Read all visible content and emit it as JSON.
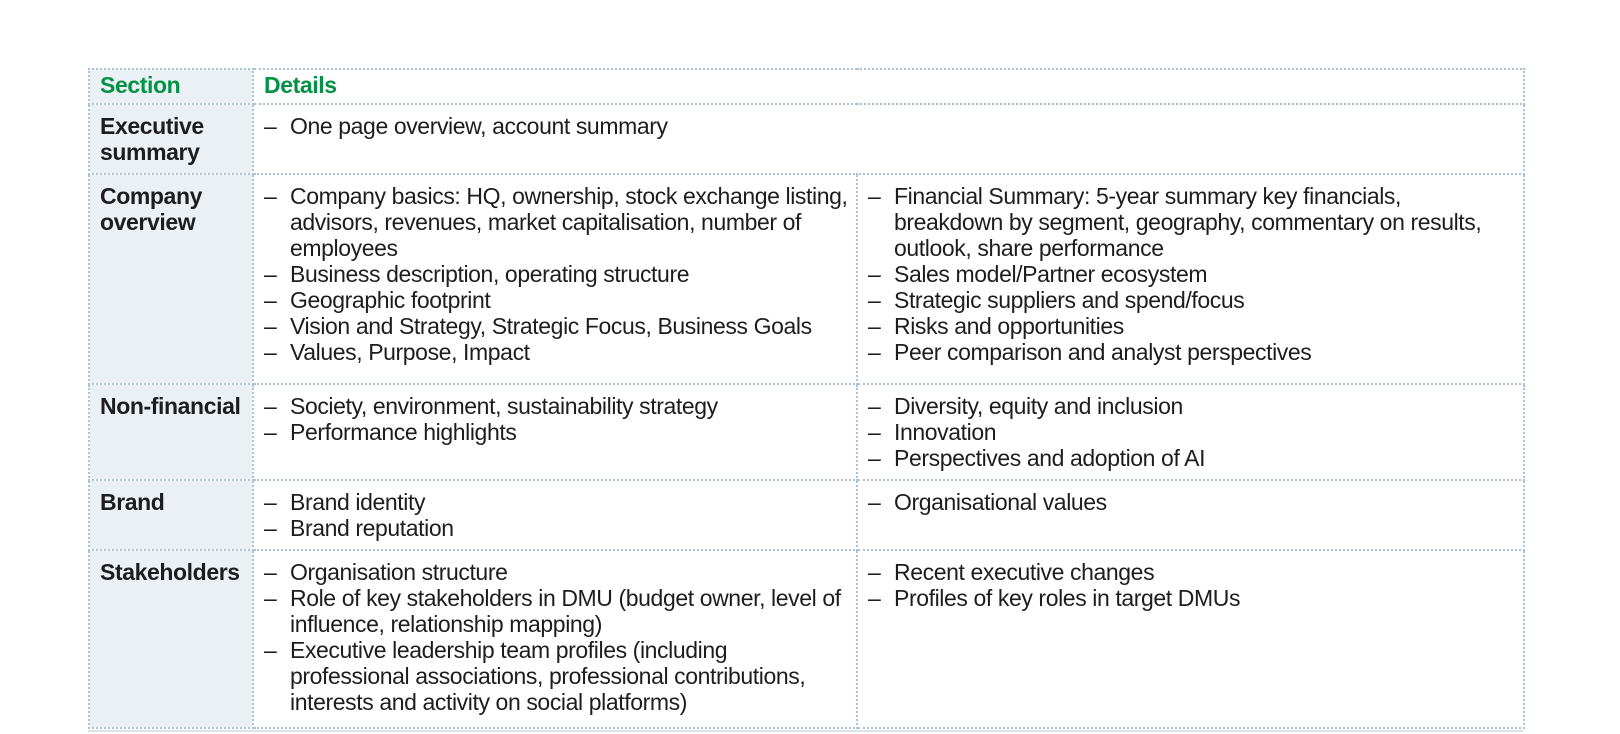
{
  "table": {
    "header": {
      "section": "Section",
      "details": "Details"
    },
    "bullet_char": "–",
    "rows": [
      {
        "section": "Executive summary",
        "left": [
          "One page overview, account summary"
        ],
        "right": null
      },
      {
        "section": "Company overview",
        "left": [
          "Company basics: HQ, ownership, stock exchange listing, advisors, revenues, market capitalisation, number of employees",
          "Business description, operating structure",
          "Geographic footprint",
          "Vision and Strategy, Strategic Focus, Business Goals",
          "Values, Purpose, Impact"
        ],
        "right": [
          "Financial Summary: 5-year summary key financials, breakdown by segment, geography, commentary on results, outlook, share performance",
          "Sales model/Partner ecosystem",
          "Strategic suppliers and spend/focus",
          "Risks and opportunities",
          "Peer comparison and analyst perspectives"
        ]
      },
      {
        "section": "Non-financial",
        "left": [
          "Society, environment, sustainability strategy",
          "Performance highlights"
        ],
        "right": [
          "Diversity, equity and inclusion",
          "Innovation",
          "Perspectives and adoption of AI"
        ]
      },
      {
        "section": "Brand",
        "left": [
          "Brand identity",
          "Brand reputation"
        ],
        "right": [
          "Organisational values"
        ]
      },
      {
        "section": "Stakeholders",
        "left": [
          "Organisation structure",
          "Role of key stakeholders in DMU (budget owner, level of influence, relationship mapping)",
          "Executive leadership team profiles (including professional associations, professional contributions, interests and activity on social platforms)"
        ],
        "right": [
          "Recent executive changes",
          "Profiles of key roles in target DMUs"
        ]
      }
    ],
    "colors": {
      "header_text_green": "#009245",
      "section_column_bg": "#eaf0f4",
      "border_dotted_blue": "#a5c3db",
      "body_text": "#1d1d1f"
    }
  }
}
